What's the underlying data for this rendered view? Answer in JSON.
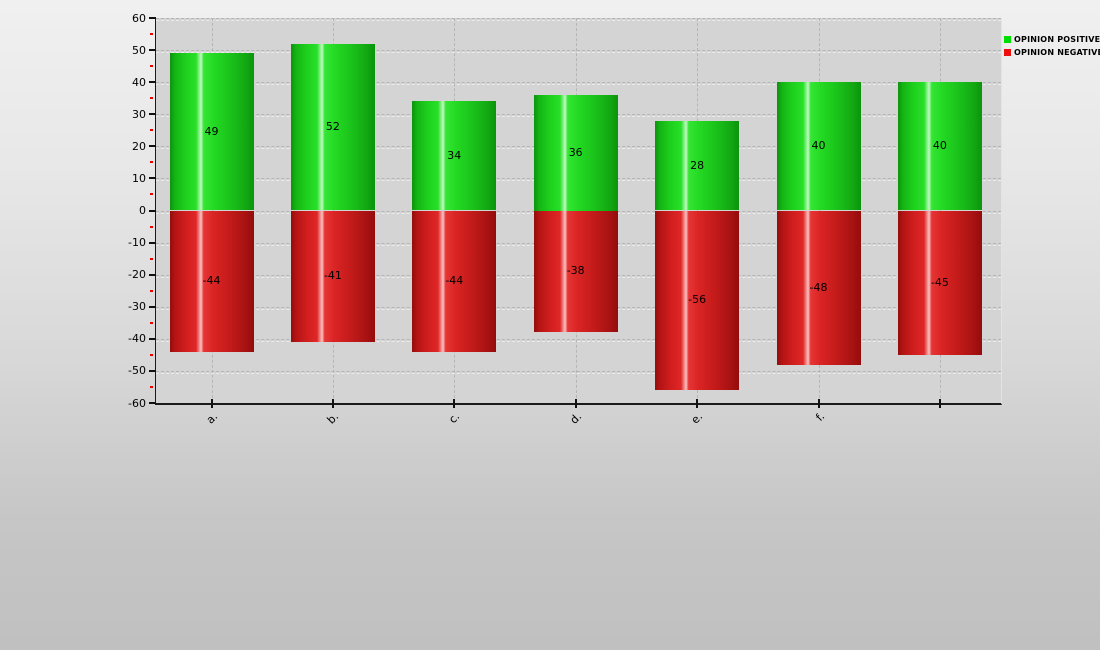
{
  "legend": {
    "items": [
      {
        "label": "OPINION POSITIVE",
        "color": "#00dd00"
      },
      {
        "label": "OPINION NEGATIVE",
        "color": "#ee1010"
      }
    ]
  },
  "chart_data": {
    "type": "bar",
    "categories": [
      "a.",
      "b.",
      "c.",
      "d.",
      "e.",
      "f.",
      ""
    ],
    "series": [
      {
        "name": "OPINION POSITIVE",
        "color": "#00dd00",
        "values": [
          49,
          52,
          34,
          36,
          28,
          40,
          40
        ]
      },
      {
        "name": "OPINION NEGATIVE",
        "color": "#ee1010",
        "values": [
          -44,
          -41,
          -44,
          -38,
          -56,
          -48,
          -45
        ]
      }
    ],
    "title": "",
    "xlabel": "",
    "ylabel": "",
    "ylim": [
      -60,
      60
    ],
    "y_major_ticks": [
      60,
      50,
      40,
      30,
      20,
      10,
      0,
      -10,
      -20,
      -30,
      -40,
      -50,
      -60
    ],
    "y_minor_tick_step": 5,
    "grid": true,
    "grid_style": "dashed",
    "bar_value_labels": true,
    "legend_position": "top-right"
  }
}
